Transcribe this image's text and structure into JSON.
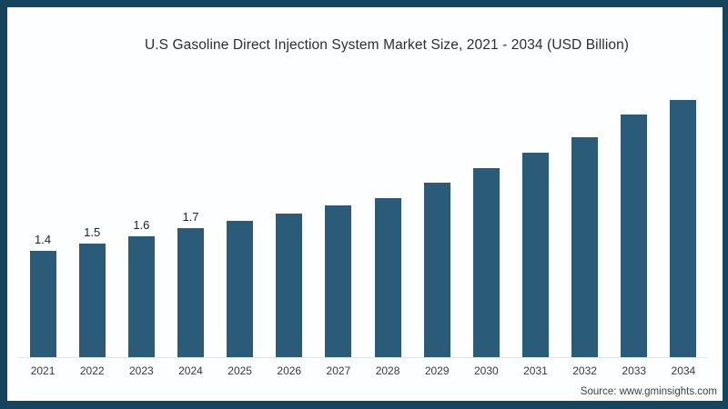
{
  "frame": {
    "background": "#fdfeff",
    "border_color": "#15455e"
  },
  "chart_data": {
    "type": "bar",
    "title": "U.S Gasoline Direct Injection System Market Size, 2021 - 2034 (USD Billion)",
    "categories": [
      "2021",
      "2022",
      "2023",
      "2024",
      "2025",
      "2026",
      "2027",
      "2028",
      "2029",
      "2030",
      "2031",
      "2032",
      "2033",
      "2034"
    ],
    "values": [
      1.4,
      1.5,
      1.6,
      1.7,
      1.8,
      1.9,
      2.0,
      2.1,
      2.3,
      2.5,
      2.7,
      2.9,
      3.2,
      3.4
    ],
    "bar_labels": [
      "1.4",
      "1.5",
      "1.6",
      "1.7",
      "",
      "",
      "",
      "",
      "",
      "",
      "",
      "",
      "",
      ""
    ],
    "bar_color": "#2a5b78",
    "xlabel": "",
    "ylabel": "",
    "ylim": [
      0,
      3.6
    ],
    "grid": false,
    "legend_position": "none",
    "axis_line_color": "#e4e4e4",
    "title_color": "#2d2d2d",
    "value_label_color": "#1f1f1f",
    "tick_label_color": "#3a3a3a"
  },
  "source": {
    "label": "Source: www.gminsights.com",
    "color": "#404040"
  }
}
